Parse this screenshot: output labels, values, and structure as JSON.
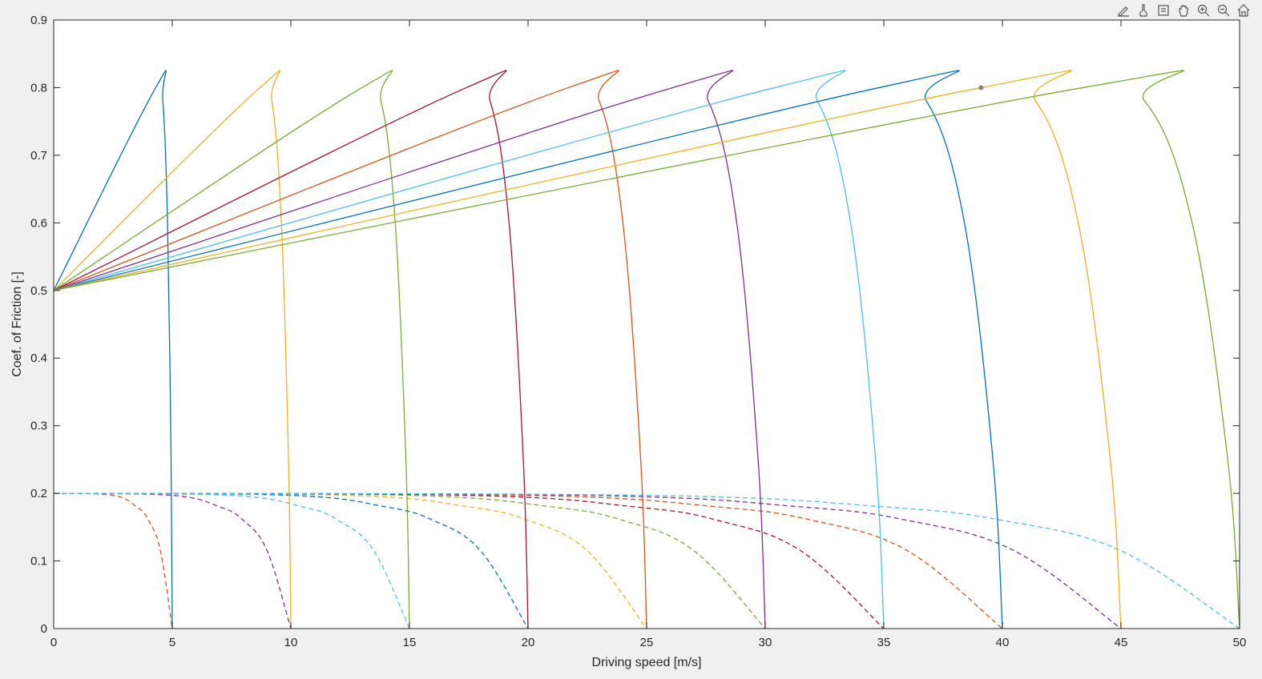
{
  "toolbar": {
    "buttons": [
      {
        "name": "edit-plot-icon"
      },
      {
        "name": "brush-icon"
      },
      {
        "name": "data-tips-icon"
      },
      {
        "name": "pan-icon"
      },
      {
        "name": "zoom-in-icon"
      },
      {
        "name": "zoom-out-icon"
      },
      {
        "name": "home-icon"
      }
    ]
  },
  "colors": [
    "#0072BD",
    "#EDB120",
    "#77AC30",
    "#A2142F",
    "#D95319",
    "#7E2F8E",
    "#4DBEEE"
  ],
  "chart_data": {
    "type": "line",
    "title": "",
    "xlabel": "Driving speed [m/s]",
    "ylabel": "Coef. of Friction [-]",
    "xlim": [
      0,
      50
    ],
    "ylim": [
      0,
      0.9
    ],
    "xticks": [
      "0",
      "5",
      "10",
      "15",
      "20",
      "25",
      "30",
      "35",
      "40",
      "45",
      "50"
    ],
    "yticks": [
      "0",
      "0.1",
      "0.2",
      "0.3",
      "0.4",
      "0.5",
      "0.6",
      "0.7",
      "0.8",
      "0.9"
    ],
    "grid": false,
    "legend": "none",
    "solid_series": [
      {
        "color": "#0072BD",
        "x": [
          0,
          4.3,
          4.6,
          4.8,
          4.95,
          5.0
        ],
        "y": [
          0.5,
          0.8,
          0.78,
          0.6,
          0.25,
          0.0
        ]
      },
      {
        "color": "#EDB120",
        "x": [
          0,
          8.7,
          9.2,
          9.6,
          9.9,
          10.0
        ],
        "y": [
          0.5,
          0.8,
          0.78,
          0.6,
          0.25,
          0.0
        ]
      },
      {
        "color": "#77AC30",
        "x": [
          0,
          13.0,
          13.8,
          14.4,
          14.85,
          15.0
        ],
        "y": [
          0.5,
          0.8,
          0.78,
          0.6,
          0.25,
          0.0
        ]
      },
      {
        "color": "#A2142F",
        "x": [
          0,
          17.4,
          18.4,
          19.2,
          19.8,
          20.0
        ],
        "y": [
          0.5,
          0.8,
          0.78,
          0.6,
          0.25,
          0.0
        ]
      },
      {
        "color": "#D95319",
        "x": [
          0,
          21.7,
          23.0,
          24.0,
          24.75,
          25.0
        ],
        "y": [
          0.5,
          0.8,
          0.78,
          0.6,
          0.25,
          0.0
        ]
      },
      {
        "color": "#7E2F8E",
        "x": [
          0,
          26.1,
          27.6,
          28.8,
          29.7,
          30.0
        ],
        "y": [
          0.5,
          0.8,
          0.78,
          0.6,
          0.25,
          0.0
        ]
      },
      {
        "color": "#4DBEEE",
        "x": [
          0,
          30.4,
          32.2,
          33.6,
          34.65,
          35.0
        ],
        "y": [
          0.5,
          0.8,
          0.78,
          0.6,
          0.25,
          0.0
        ]
      },
      {
        "color": "#0072BD",
        "x": [
          0,
          34.8,
          36.8,
          38.4,
          39.6,
          40.0
        ],
        "y": [
          0.5,
          0.8,
          0.78,
          0.6,
          0.25,
          0.0
        ]
      },
      {
        "color": "#EDB120",
        "x": [
          0,
          39.1,
          41.4,
          43.2,
          44.55,
          45.0
        ],
        "y": [
          0.5,
          0.8,
          0.78,
          0.6,
          0.25,
          0.0
        ]
      },
      {
        "color": "#77AC30",
        "x": [
          0,
          43.4,
          46.0,
          48.0,
          49.5,
          50.0
        ],
        "y": [
          0.5,
          0.8,
          0.78,
          0.6,
          0.25,
          0.0
        ]
      }
    ],
    "dashed_series": [
      {
        "color": "#D95319",
        "x": [
          0,
          2.5,
          3.5,
          4.0,
          4.5,
          5.0
        ],
        "y": [
          0.2,
          0.197,
          0.18,
          0.16,
          0.115,
          0.0
        ]
      },
      {
        "color": "#7E2F8E",
        "x": [
          0,
          5.0,
          7.0,
          8.0,
          9.0,
          10.0
        ],
        "y": [
          0.2,
          0.197,
          0.18,
          0.16,
          0.115,
          0.0
        ]
      },
      {
        "color": "#4DBEEE",
        "x": [
          0,
          7.5,
          10.5,
          12.0,
          13.5,
          15.0
        ],
        "y": [
          0.2,
          0.197,
          0.18,
          0.16,
          0.115,
          0.0
        ]
      },
      {
        "color": "#0072BD",
        "x": [
          0,
          10.0,
          14.0,
          16.0,
          18.0,
          20.0
        ],
        "y": [
          0.2,
          0.197,
          0.18,
          0.16,
          0.115,
          0.0
        ]
      },
      {
        "color": "#EDB120",
        "x": [
          0,
          12.5,
          17.5,
          20.0,
          22.5,
          25.0
        ],
        "y": [
          0.2,
          0.197,
          0.18,
          0.16,
          0.115,
          0.0
        ]
      },
      {
        "color": "#77AC30",
        "x": [
          0,
          15.0,
          21.0,
          24.0,
          27.0,
          30.0
        ],
        "y": [
          0.2,
          0.197,
          0.18,
          0.16,
          0.115,
          0.0
        ]
      },
      {
        "color": "#A2142F",
        "x": [
          0,
          17.5,
          24.5,
          28.0,
          31.5,
          35.0
        ],
        "y": [
          0.2,
          0.197,
          0.18,
          0.16,
          0.115,
          0.0
        ]
      },
      {
        "color": "#D95319",
        "x": [
          0,
          20.0,
          28.0,
          32.0,
          36.0,
          40.0
        ],
        "y": [
          0.2,
          0.197,
          0.18,
          0.16,
          0.115,
          0.0
        ]
      },
      {
        "color": "#7E2F8E",
        "x": [
          0,
          22.5,
          31.5,
          36.0,
          40.5,
          45.0
        ],
        "y": [
          0.2,
          0.197,
          0.18,
          0.16,
          0.115,
          0.0
        ]
      },
      {
        "color": "#4DBEEE",
        "x": [
          0,
          25.0,
          35.0,
          40.0,
          45.0,
          50.0
        ],
        "y": [
          0.2,
          0.197,
          0.18,
          0.16,
          0.115,
          0.0
        ]
      }
    ],
    "marker": {
      "x": 39.1,
      "y": 0.8,
      "color": "#7f7f7f"
    }
  }
}
